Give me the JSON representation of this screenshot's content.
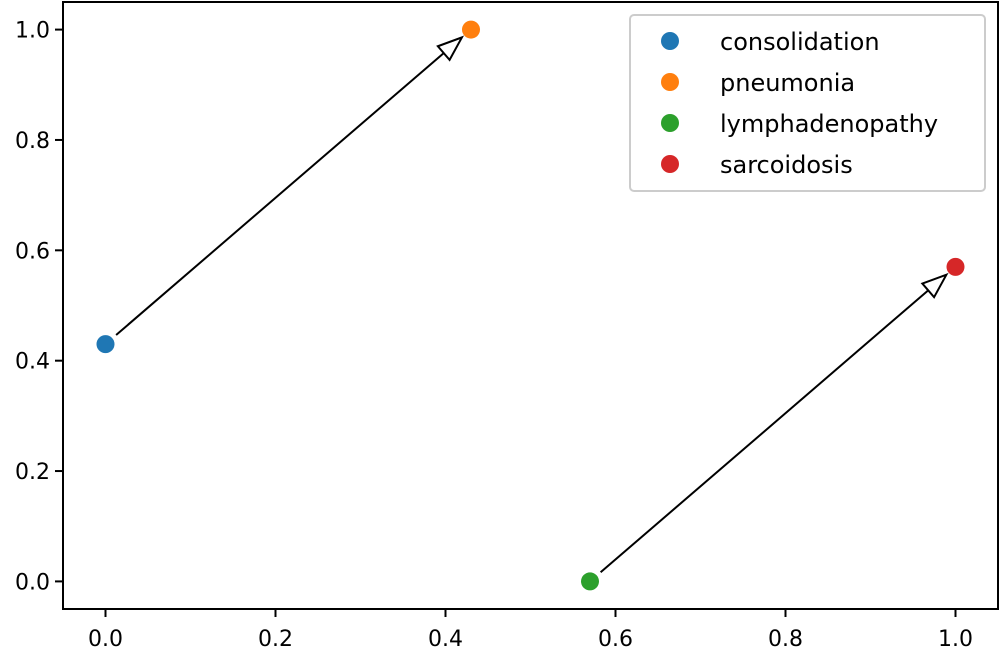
{
  "chart_data": {
    "type": "scatter",
    "title": "",
    "xlabel": "",
    "ylabel": "",
    "xlim": [
      -0.05,
      1.05
    ],
    "ylim": [
      -0.05,
      1.05
    ],
    "grid": false,
    "legend_position": "top-right",
    "x_ticks": [
      {
        "value": 0.0,
        "label": "0.0"
      },
      {
        "value": 0.2,
        "label": "0.2"
      },
      {
        "value": 0.4,
        "label": "0.4"
      },
      {
        "value": 0.6,
        "label": "0.6"
      },
      {
        "value": 0.8,
        "label": "0.8"
      },
      {
        "value": 1.0,
        "label": "1.0"
      }
    ],
    "y_ticks": [
      {
        "value": 0.0,
        "label": "0.0"
      },
      {
        "value": 0.2,
        "label": "0.2"
      },
      {
        "value": 0.4,
        "label": "0.4"
      },
      {
        "value": 0.6,
        "label": "0.6"
      },
      {
        "value": 0.8,
        "label": "0.8"
      },
      {
        "value": 1.0,
        "label": "1.0"
      }
    ],
    "series": [
      {
        "name": "consolidation",
        "x": 0.0,
        "y": 0.43,
        "color": "#1f77b4"
      },
      {
        "name": "pneumonia",
        "x": 0.43,
        "y": 1.0,
        "color": "#ff7f0e"
      },
      {
        "name": "lymphadenopathy",
        "x": 0.57,
        "y": 0.0,
        "color": "#2ca02c"
      },
      {
        "name": "sarcoidosis",
        "x": 1.0,
        "y": 0.57,
        "color": "#d62728"
      }
    ],
    "arrows": [
      {
        "from": "consolidation",
        "to": "pneumonia"
      },
      {
        "from": "lymphadenopathy",
        "to": "sarcoidosis"
      }
    ]
  }
}
